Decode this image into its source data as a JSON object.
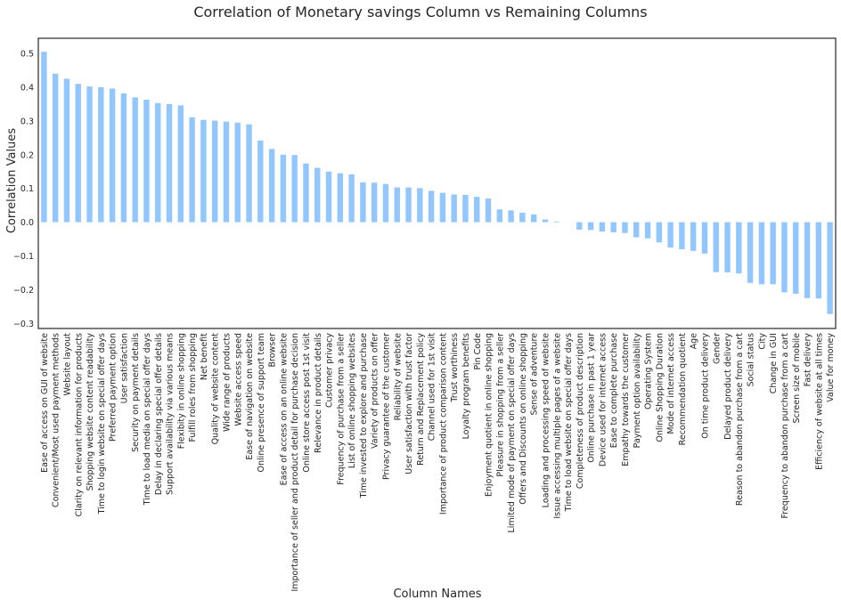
{
  "chart_data": {
    "type": "bar",
    "title": "Correlation of Monetary savings Column vs Remaining Columns",
    "xlabel": "Column Names",
    "ylabel": "Correlation Values",
    "ylim": [
      -0.315,
      0.545
    ],
    "yticks": [
      -0.3,
      -0.2,
      -0.1,
      0.0,
      0.1,
      0.2,
      0.3,
      0.4,
      0.5
    ],
    "ytick_labels": [
      "−0.3",
      "−0.2",
      "−0.1",
      "0.0",
      "0.1",
      "0.2",
      "0.3",
      "0.4",
      "0.5"
    ],
    "grid": false,
    "legend": "none",
    "bar_color": "#92c6ff",
    "categories": [
      "Ease of access on GUI of website",
      "Convenient/Most used payment methods",
      "Website layout",
      "Clarity on relevant information for products",
      "Shopping website content readability",
      "Time to login website on special offer days",
      "Preferred payment option",
      "User satisfaction",
      "Security on payment details",
      "Time to load media on special offer days",
      "Delay in declaring special offer details",
      "Support availability via various means",
      "Flexibity in online shopping",
      "Fulfill roles from shopping",
      "Net benefit",
      "Quality of website content",
      "Wide range of products",
      "Website access speed",
      "Ease of navigation on website",
      "Online presence of support team",
      "Browser",
      "Ease of access on an online website",
      "Importance of seller and product detail for purchase decision",
      "Online store access post 1st visit",
      "Relevance in product details",
      "Customer privacy",
      "Frequency of purchase from a seller",
      "List of online shopping websites",
      "Time invested to explore and purchase",
      "Variety of products on offer",
      "Privacy guarantee of the customer",
      "Reliability of website",
      "User satisfaction with trust factor",
      "Return and Replacement policy",
      "Channel used for 1st visit",
      "Importance of product comparison content",
      "Trust worthiness",
      "Loyalty program benefits",
      "Pin Code",
      "Enjoyment quotient in online shopping",
      "Pleasure in shopping from a seller",
      "Limited mode of payment on special offer days",
      "Offers and Discounts on online shopping",
      "Sense of adventure",
      "Loading and processing speed of website",
      "Issue accessing multiple pages of a website",
      "Time to load website on special offer days",
      "Completeness of product description",
      "Online purchase in past 1 year",
      "Device used for internet access",
      "Ease to complete purchase",
      "Empathy towards the customer",
      "Payment option availability",
      "Operating System",
      "Online Shopping Duration",
      "Mode of internet access",
      "Recommendation quotient",
      "Age",
      "On time product delivery",
      "Gender",
      "Delayed product delivery",
      "Reason to abandon purchase from a cart",
      "Social status",
      "City",
      "Change in GUI",
      "Frequency to abandon purchase from a cart",
      "Screen size of mobile",
      "Fast delivery",
      "Efficiency of website at all times",
      "Value for money"
    ],
    "values": [
      0.505,
      0.44,
      0.425,
      0.41,
      0.402,
      0.4,
      0.396,
      0.382,
      0.37,
      0.363,
      0.353,
      0.35,
      0.346,
      0.311,
      0.303,
      0.301,
      0.298,
      0.295,
      0.29,
      0.242,
      0.217,
      0.2,
      0.199,
      0.174,
      0.161,
      0.15,
      0.145,
      0.142,
      0.118,
      0.117,
      0.113,
      0.103,
      0.103,
      0.101,
      0.093,
      0.087,
      0.082,
      0.081,
      0.075,
      0.07,
      0.038,
      0.035,
      0.028,
      0.023,
      0.008,
      0.002,
      0.0,
      -0.022,
      -0.023,
      -0.028,
      -0.03,
      -0.032,
      -0.045,
      -0.048,
      -0.06,
      -0.075,
      -0.08,
      -0.085,
      -0.093,
      -0.148,
      -0.149,
      -0.152,
      -0.18,
      -0.184,
      -0.184,
      -0.208,
      -0.212,
      -0.225,
      -0.226,
      -0.272
    ]
  }
}
